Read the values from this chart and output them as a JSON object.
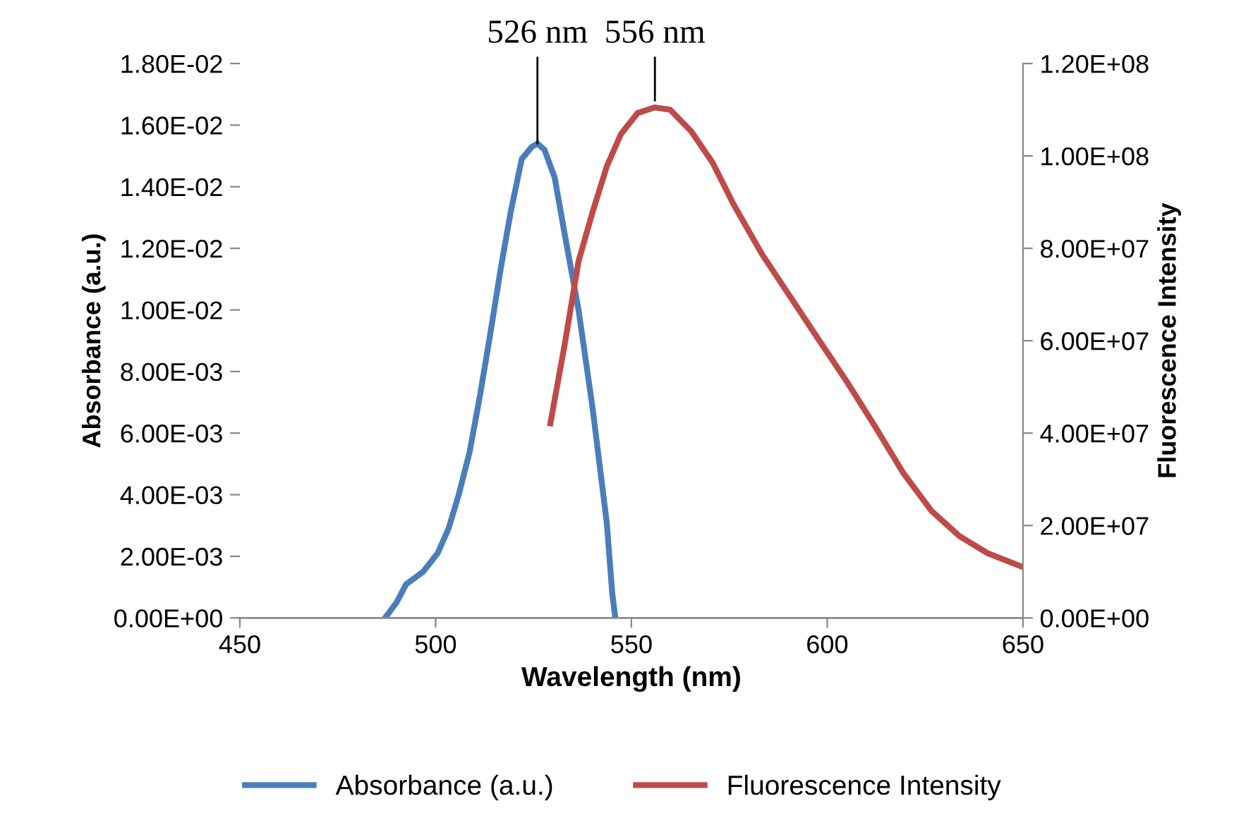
{
  "chart_data": {
    "type": "line",
    "xlabel": "Wavelength (nm)",
    "ylabel": "Absorbance (a.u.)",
    "y2label": "Fluorescence Intensity",
    "xlim": [
      450,
      650
    ],
    "xticks": [
      450,
      500,
      550,
      600,
      650
    ],
    "ylim": [
      0,
      0.018
    ],
    "yticks": [
      {
        "value": 0,
        "label": "0.00E+00"
      },
      {
        "value": 0.002,
        "label": "2.00E-03"
      },
      {
        "value": 0.004,
        "label": "4.00E-03"
      },
      {
        "value": 0.006,
        "label": "6.00E-03"
      },
      {
        "value": 0.008,
        "label": "8.00E-03"
      },
      {
        "value": 0.01,
        "label": "1.00E-02"
      },
      {
        "value": 0.012,
        "label": "1.20E-02"
      },
      {
        "value": 0.014,
        "label": "1.40E-02"
      },
      {
        "value": 0.016,
        "label": "1.60E-02"
      },
      {
        "value": 0.018,
        "label": "1.80E-02"
      }
    ],
    "y2lim": [
      0,
      120000000
    ],
    "y2ticks": [
      {
        "value": 0,
        "label": "0.00E+00"
      },
      {
        "value": 20000000,
        "label": "2.00E+07"
      },
      {
        "value": 40000000,
        "label": "4.00E+07"
      },
      {
        "value": 60000000,
        "label": "6.00E+07"
      },
      {
        "value": 80000000,
        "label": "8.00E+07"
      },
      {
        "value": 100000000,
        "label": "1.00E+08"
      },
      {
        "value": 120000000,
        "label": "1.20E+08"
      }
    ],
    "legend": "bottom",
    "grid": false,
    "marker": "none",
    "series": [
      {
        "name": "Absorbance (a.u.)",
        "color": "#4a7ebb",
        "x": [
          487.1,
          490,
          492.5,
          496.8,
          500.5,
          503.3,
          505.9,
          508.7,
          511.3,
          513.8,
          516.7,
          519.2,
          522,
          524.6,
          526,
          527.8,
          530.4,
          532.9,
          536.5,
          540.1,
          543.7,
          545.1,
          545.9
        ],
        "values": [
          0,
          0.0005,
          0.0011,
          0.0015,
          0.0021,
          0.0029,
          0.004,
          0.0054,
          0.0072,
          0.0091,
          0.0114,
          0.0132,
          0.0149,
          0.0153,
          0.0154,
          0.0152,
          0.0143,
          0.0125,
          0.01,
          0.0068,
          0.0031,
          0.0008,
          0
        ]
      },
      {
        "name": "Fluorescence Intensity",
        "color": "#be4b48",
        "axis": "y2",
        "x": [
          529.3,
          532.9,
          536.5,
          540.1,
          543.7,
          547.3,
          551.6,
          556,
          559.9,
          565.3,
          570.7,
          576.1,
          583.3,
          590.5,
          597.7,
          604.9,
          612.2,
          619.4,
          626.6,
          633.8,
          641,
          650
        ],
        "values": [
          42100000,
          58900000,
          77200000,
          87900000,
          97700000,
          104700000,
          109300000,
          110500000,
          110000000,
          105300000,
          98600000,
          89500000,
          78800000,
          69600000,
          60400000,
          51300000,
          41500000,
          31400000,
          23200000,
          17700000,
          14000000,
          11000000
        ]
      }
    ],
    "annotations": [
      {
        "text": "526 nm",
        "x": 526,
        "y": 0.0154
      },
      {
        "text": "556 nm",
        "x": 556,
        "y": 0.0168
      }
    ]
  }
}
